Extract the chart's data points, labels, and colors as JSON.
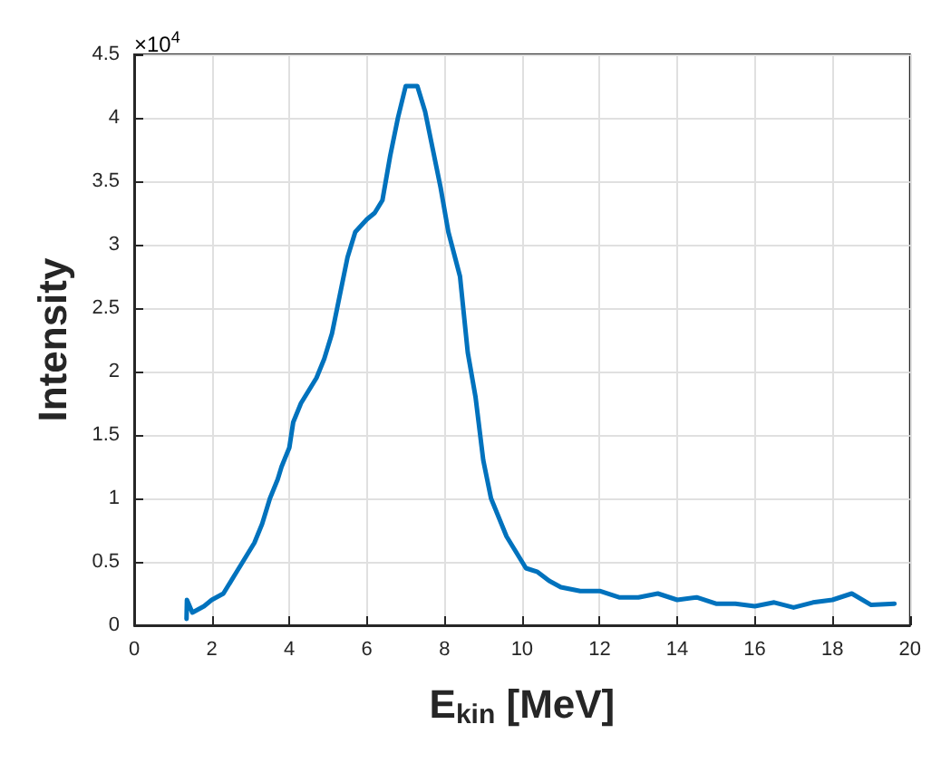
{
  "chart_data": {
    "type": "line",
    "xlabel": "E$_{kin}$ [MeV]",
    "ylabel": "Intensity",
    "annotations": [
      "×10$^{4}$"
    ],
    "x": [
      1.35,
      1.36,
      1.5,
      1.8,
      2.0,
      2.3,
      2.6,
      2.9,
      3.1,
      3.3,
      3.5,
      3.7,
      3.8,
      4.0,
      4.1,
      4.3,
      4.5,
      4.7,
      4.9,
      5.1,
      5.3,
      5.5,
      5.7,
      6.0,
      6.2,
      6.4,
      6.6,
      6.8,
      7.0,
      7.3,
      7.5,
      7.7,
      7.9,
      8.1,
      8.4,
      8.6,
      8.8,
      9.0,
      9.2,
      9.4,
      9.6,
      9.8,
      10.1,
      10.4,
      10.7,
      11.0,
      11.5,
      12.0,
      12.5,
      13.0,
      13.5,
      14.0,
      14.5,
      15.0,
      15.5,
      16.0,
      16.5,
      17.0,
      17.5,
      18.0,
      18.5,
      19.0,
      19.6
    ],
    "series": [
      {
        "color": "#0072bd",
        "values": [
          0.05,
          0.2,
          0.1,
          0.15,
          0.2,
          0.25,
          0.4,
          0.55,
          0.65,
          0.8,
          1.0,
          1.15,
          1.25,
          1.4,
          1.6,
          1.75,
          1.85,
          1.95,
          2.1,
          2.3,
          2.6,
          2.9,
          3.1,
          3.2,
          3.25,
          3.35,
          3.7,
          4.0,
          4.25,
          4.25,
          4.05,
          3.75,
          3.45,
          3.1,
          2.75,
          2.15,
          1.8,
          1.3,
          1.0,
          0.85,
          0.7,
          0.6,
          0.45,
          0.42,
          0.35,
          0.3,
          0.27,
          0.27,
          0.22,
          0.22,
          0.25,
          0.2,
          0.22,
          0.17,
          0.17,
          0.15,
          0.18,
          0.14,
          0.18,
          0.2,
          0.25,
          0.16,
          0.17
        ]
      }
    ],
    "xlim": [
      0,
      20
    ],
    "xticks": [
      0,
      2,
      4,
      6,
      8,
      10,
      12,
      14,
      16,
      18,
      20
    ],
    "ylim": [
      0,
      4.5
    ],
    "yticks": [
      0,
      0.5,
      1,
      1.5,
      2,
      2.5,
      3,
      3.5,
      4,
      4.5
    ],
    "grid": true,
    "marker": "none",
    "line_style": "solid"
  }
}
